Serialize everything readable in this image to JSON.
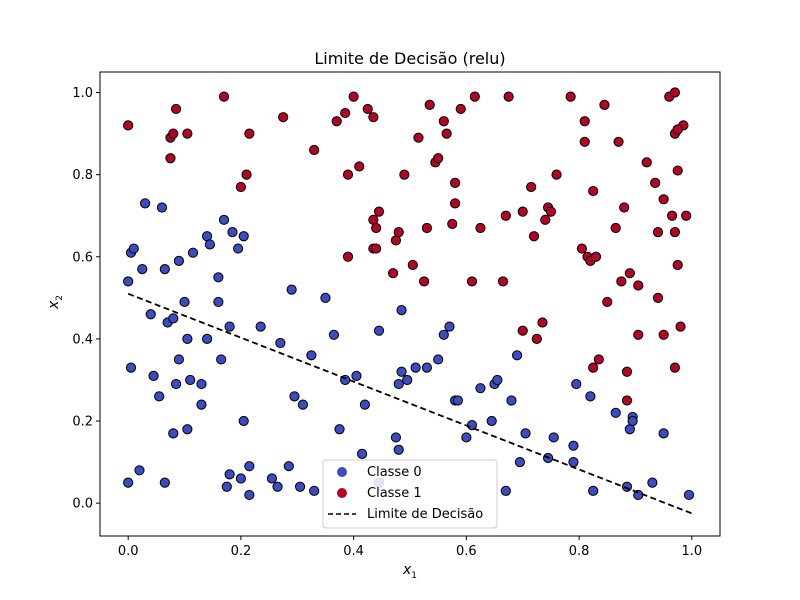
{
  "chart_data": {
    "type": "scatter",
    "title": "Limite de Decisão (relu)",
    "xlabel": "x",
    "xlabel_sub": "1",
    "ylabel": "x",
    "ylabel_sub": "2",
    "xlim": [
      -0.05,
      1.05
    ],
    "ylim": [
      -0.08,
      1.05
    ],
    "x_ticks": [
      0.0,
      0.2,
      0.4,
      0.6,
      0.8,
      1.0
    ],
    "y_ticks": [
      0.0,
      0.2,
      0.4,
      0.6,
      0.8,
      1.0
    ],
    "x_tick_labels": [
      "0.0",
      "0.2",
      "0.4",
      "0.6",
      "0.8",
      "1.0"
    ],
    "y_tick_labels": [
      "0.0",
      "0.2",
      "0.4",
      "0.6",
      "0.8",
      "1.0"
    ],
    "grid": false,
    "legend_position": "bottom-center",
    "colors": {
      "class0": "#3b4cc0",
      "class1": "#b40426",
      "boundary": "#000000",
      "edge": "#000000"
    },
    "decision_boundary": {
      "name": "Limite de Decisão",
      "style": "dashed",
      "x": [
        0.0,
        1.0
      ],
      "y": [
        0.51,
        -0.025
      ]
    },
    "series": [
      {
        "name": "Classe 0",
        "points": [
          [
            0.0,
            0.54
          ],
          [
            0.005,
            0.61
          ],
          [
            0.01,
            0.62
          ],
          [
            0.005,
            0.33
          ],
          [
            0.0,
            0.05
          ],
          [
            0.02,
            0.08
          ],
          [
            0.025,
            0.57
          ],
          [
            0.03,
            0.73
          ],
          [
            0.04,
            0.46
          ],
          [
            0.045,
            0.31
          ],
          [
            0.06,
            0.72
          ],
          [
            0.065,
            0.57
          ],
          [
            0.055,
            0.26
          ],
          [
            0.065,
            0.05
          ],
          [
            0.07,
            0.44
          ],
          [
            0.08,
            0.45
          ],
          [
            0.08,
            0.17
          ],
          [
            0.085,
            0.29
          ],
          [
            0.09,
            0.59
          ],
          [
            0.09,
            0.35
          ],
          [
            0.1,
            0.49
          ],
          [
            0.105,
            0.4
          ],
          [
            0.105,
            0.18
          ],
          [
            0.11,
            0.3
          ],
          [
            0.115,
            0.61
          ],
          [
            0.13,
            0.29
          ],
          [
            0.13,
            0.24
          ],
          [
            0.14,
            0.65
          ],
          [
            0.14,
            0.4
          ],
          [
            0.145,
            0.63
          ],
          [
            0.16,
            0.55
          ],
          [
            0.16,
            0.49
          ],
          [
            0.165,
            0.35
          ],
          [
            0.17,
            0.69
          ],
          [
            0.175,
            0.04
          ],
          [
            0.18,
            0.43
          ],
          [
            0.18,
            0.07
          ],
          [
            0.185,
            0.66
          ],
          [
            0.195,
            0.62
          ],
          [
            0.2,
            0.06
          ],
          [
            0.205,
            0.65
          ],
          [
            0.205,
            0.2
          ],
          [
            0.215,
            0.09
          ],
          [
            0.215,
            0.02
          ],
          [
            0.235,
            0.43
          ],
          [
            0.255,
            0.06
          ],
          [
            0.265,
            0.04
          ],
          [
            0.27,
            0.39
          ],
          [
            0.285,
            0.09
          ],
          [
            0.29,
            0.52
          ],
          [
            0.295,
            0.26
          ],
          [
            0.305,
            0.04
          ],
          [
            0.31,
            0.24
          ],
          [
            0.325,
            0.36
          ],
          [
            0.33,
            0.03
          ],
          [
            0.35,
            0.5
          ],
          [
            0.365,
            0.41
          ],
          [
            0.375,
            0.18
          ],
          [
            0.385,
            0.3
          ],
          [
            0.405,
            0.31
          ],
          [
            0.415,
            0.12
          ],
          [
            0.42,
            0.24
          ],
          [
            0.445,
            0.42
          ],
          [
            0.445,
            0.05
          ],
          [
            0.475,
            0.16
          ],
          [
            0.48,
            0.13
          ],
          [
            0.48,
            0.29
          ],
          [
            0.485,
            0.32
          ],
          [
            0.485,
            0.47
          ],
          [
            0.495,
            0.3
          ],
          [
            0.51,
            0.33
          ],
          [
            0.53,
            0.33
          ],
          [
            0.55,
            0.35
          ],
          [
            0.56,
            0.41
          ],
          [
            0.57,
            0.43
          ],
          [
            0.58,
            0.25
          ],
          [
            0.585,
            0.25
          ],
          [
            0.6,
            0.16
          ],
          [
            0.61,
            0.19
          ],
          [
            0.625,
            0.28
          ],
          [
            0.645,
            0.2
          ],
          [
            0.65,
            0.29
          ],
          [
            0.655,
            0.3
          ],
          [
            0.67,
            0.03
          ],
          [
            0.68,
            0.25
          ],
          [
            0.69,
            0.36
          ],
          [
            0.695,
            0.1
          ],
          [
            0.705,
            0.17
          ],
          [
            0.745,
            0.11
          ],
          [
            0.755,
            0.16
          ],
          [
            0.79,
            0.14
          ],
          [
            0.79,
            0.1
          ],
          [
            0.795,
            0.29
          ],
          [
            0.82,
            0.26
          ],
          [
            0.825,
            0.03
          ],
          [
            0.865,
            0.22
          ],
          [
            0.885,
            0.04
          ],
          [
            0.89,
            0.18
          ],
          [
            0.895,
            0.21
          ],
          [
            0.895,
            0.2
          ],
          [
            0.905,
            0.02
          ],
          [
            0.93,
            0.05
          ],
          [
            0.95,
            0.17
          ],
          [
            0.995,
            0.02
          ]
        ]
      },
      {
        "name": "Classe 1",
        "points": [
          [
            0.0,
            0.92
          ],
          [
            0.075,
            0.84
          ],
          [
            0.075,
            0.89
          ],
          [
            0.08,
            0.9
          ],
          [
            0.085,
            0.96
          ],
          [
            0.105,
            0.9
          ],
          [
            0.17,
            0.99
          ],
          [
            0.2,
            0.77
          ],
          [
            0.21,
            0.8
          ],
          [
            0.215,
            0.9
          ],
          [
            0.275,
            0.94
          ],
          [
            0.33,
            0.86
          ],
          [
            0.37,
            0.93
          ],
          [
            0.385,
            0.95
          ],
          [
            0.39,
            0.6
          ],
          [
            0.39,
            0.8
          ],
          [
            0.4,
            0.99
          ],
          [
            0.41,
            0.82
          ],
          [
            0.425,
            0.96
          ],
          [
            0.435,
            0.69
          ],
          [
            0.435,
            0.94
          ],
          [
            0.435,
            0.62
          ],
          [
            0.44,
            0.62
          ],
          [
            0.44,
            0.67
          ],
          [
            0.445,
            0.71
          ],
          [
            0.47,
            0.56
          ],
          [
            0.475,
            0.64
          ],
          [
            0.48,
            0.66
          ],
          [
            0.49,
            0.8
          ],
          [
            0.505,
            0.58
          ],
          [
            0.515,
            0.89
          ],
          [
            0.525,
            0.54
          ],
          [
            0.53,
            0.67
          ],
          [
            0.535,
            0.97
          ],
          [
            0.545,
            0.83
          ],
          [
            0.55,
            0.84
          ],
          [
            0.56,
            0.93
          ],
          [
            0.565,
            0.9
          ],
          [
            0.575,
            0.68
          ],
          [
            0.58,
            0.78
          ],
          [
            0.58,
            0.73
          ],
          [
            0.59,
            0.96
          ],
          [
            0.61,
            0.54
          ],
          [
            0.615,
            0.99
          ],
          [
            0.625,
            0.67
          ],
          [
            0.665,
            0.54
          ],
          [
            0.67,
            0.7
          ],
          [
            0.675,
            0.99
          ],
          [
            0.7,
            0.42
          ],
          [
            0.7,
            0.71
          ],
          [
            0.715,
            0.77
          ],
          [
            0.72,
            0.65
          ],
          [
            0.725,
            0.4
          ],
          [
            0.735,
            0.44
          ],
          [
            0.74,
            0.69
          ],
          [
            0.745,
            0.72
          ],
          [
            0.75,
            0.71
          ],
          [
            0.76,
            0.8
          ],
          [
            0.785,
            0.99
          ],
          [
            0.805,
            0.62
          ],
          [
            0.81,
            0.88
          ],
          [
            0.81,
            0.93
          ],
          [
            0.815,
            0.6
          ],
          [
            0.82,
            0.59
          ],
          [
            0.825,
            0.33
          ],
          [
            0.825,
            0.76
          ],
          [
            0.83,
            0.6
          ],
          [
            0.835,
            0.35
          ],
          [
            0.845,
            0.97
          ],
          [
            0.85,
            0.49
          ],
          [
            0.865,
            0.67
          ],
          [
            0.87,
            0.88
          ],
          [
            0.875,
            0.54
          ],
          [
            0.88,
            0.72
          ],
          [
            0.885,
            0.32
          ],
          [
            0.885,
            0.25
          ],
          [
            0.89,
            0.56
          ],
          [
            0.905,
            0.41
          ],
          [
            0.905,
            0.53
          ],
          [
            0.92,
            0.83
          ],
          [
            0.935,
            0.78
          ],
          [
            0.94,
            0.5
          ],
          [
            0.94,
            0.66
          ],
          [
            0.95,
            0.74
          ],
          [
            0.95,
            0.41
          ],
          [
            0.96,
            0.99
          ],
          [
            0.965,
            0.7
          ],
          [
            0.97,
            0.33
          ],
          [
            0.97,
            1.0
          ],
          [
            0.97,
            0.66
          ],
          [
            0.975,
            0.91
          ],
          [
            0.975,
            0.58
          ],
          [
            0.975,
            0.81
          ],
          [
            0.98,
            0.43
          ],
          [
            0.985,
            0.92
          ],
          [
            0.99,
            0.7
          ],
          [
            0.97,
            0.9
          ],
          [
            0.975,
            0.91
          ]
        ]
      }
    ]
  }
}
